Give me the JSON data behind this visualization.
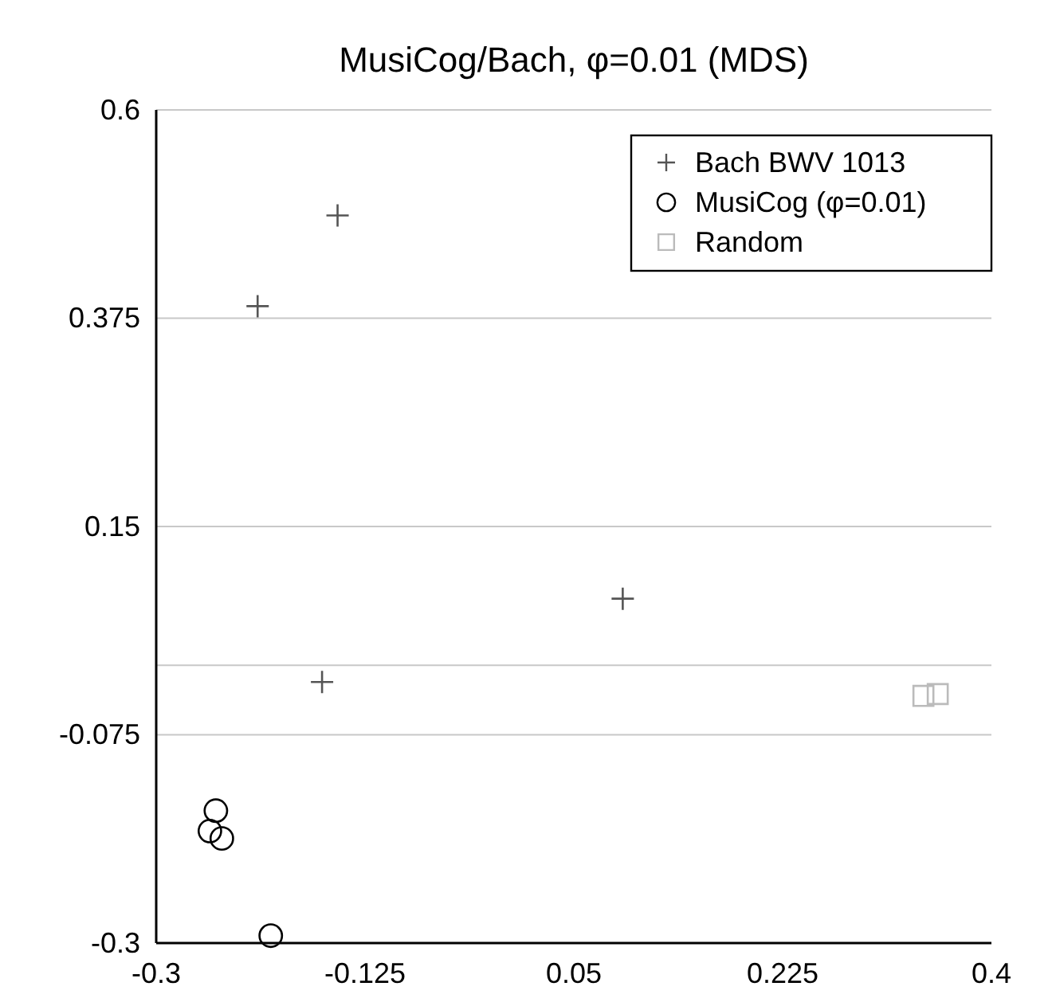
{
  "chart_data": {
    "type": "scatter",
    "title": "MusiCog/Bach, φ=0.01 (MDS)",
    "xlim": [
      -0.3,
      0.4
    ],
    "xticks": [
      -0.3,
      -0.125,
      0.05,
      0.225,
      0.4
    ],
    "ylim": [
      -0.3,
      0.6
    ],
    "yticks": [
      -0.3,
      -0.075,
      0.15,
      0.375,
      0.6
    ],
    "grid": "y",
    "legend": "top right",
    "ref_lines": [
      {
        "axis": "y",
        "value": 0
      }
    ],
    "series": [
      {
        "name": "Bach BWV 1013",
        "color": "#555555",
        "marker": "cross",
        "x": [
          -0.148,
          -0.215,
          0.091,
          -0.161
        ],
        "values": [
          0.486,
          0.388,
          0.072,
          -0.018
        ]
      },
      {
        "name": "MusiCog (φ=0.01)",
        "color": "#000000",
        "marker": "circle",
        "x": [
          -0.25,
          -0.255,
          -0.245,
          -0.204
        ],
        "values": [
          -0.157,
          -0.179,
          -0.187,
          -0.292
        ]
      },
      {
        "name": "Random",
        "color": "#bbbbbb",
        "marker": "square",
        "x": [
          0.343,
          0.355
        ],
        "values": [
          -0.033,
          -0.031
        ]
      }
    ]
  }
}
